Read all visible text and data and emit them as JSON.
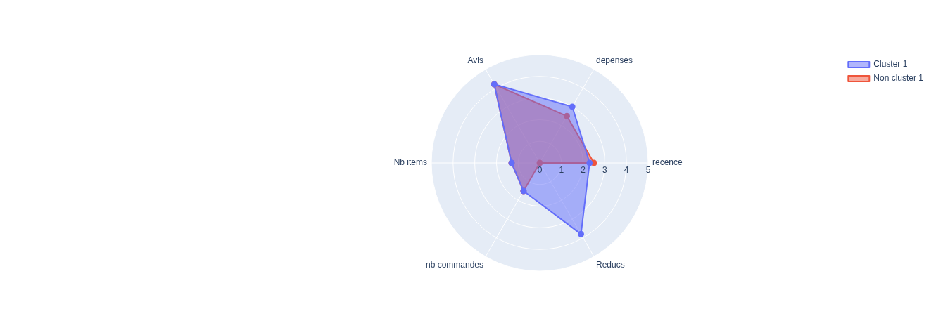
{
  "chart_data": {
    "type": "radar",
    "categories": [
      "depenses",
      "recence",
      "Reducs",
      "nb commandes",
      "Nb items",
      "Avis"
    ],
    "series": [
      {
        "name": "Cluster 1",
        "color": "#636efa",
        "values": [
          3.0,
          2.3,
          3.8,
          1.5,
          1.3,
          4.2
        ]
      },
      {
        "name": "Non cluster 1",
        "color": "#ef553b",
        "values": [
          2.5,
          2.5,
          0,
          1.5,
          1.3,
          4.2
        ]
      }
    ],
    "ylim": [
      0,
      5
    ],
    "yticks": [
      0,
      1,
      2,
      3,
      4,
      5
    ],
    "grid": true,
    "legend": "top right",
    "marker": "circle",
    "line_style": "solid"
  }
}
